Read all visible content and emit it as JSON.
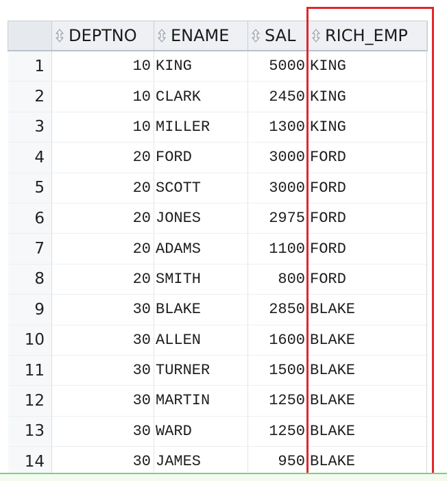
{
  "columns": [
    {
      "label": "DEPTNO",
      "icon": "sort-icon"
    },
    {
      "label": "ENAME",
      "icon": "sort-icon"
    },
    {
      "label": "SAL",
      "icon": "sort-icon"
    },
    {
      "label": "RICH_EMP",
      "icon": "sort-icon"
    }
  ],
  "rows": [
    {
      "n": "1",
      "deptno": "10",
      "ename": "KING",
      "sal": "5000",
      "rich_emp": "KING"
    },
    {
      "n": "2",
      "deptno": "10",
      "ename": "CLARK",
      "sal": "2450",
      "rich_emp": "KING"
    },
    {
      "n": "3",
      "deptno": "10",
      "ename": "MILLER",
      "sal": "1300",
      "rich_emp": "KING"
    },
    {
      "n": "4",
      "deptno": "20",
      "ename": "FORD",
      "sal": "3000",
      "rich_emp": "FORD"
    },
    {
      "n": "5",
      "deptno": "20",
      "ename": "SCOTT",
      "sal": "3000",
      "rich_emp": "FORD"
    },
    {
      "n": "6",
      "deptno": "20",
      "ename": "JONES",
      "sal": "2975",
      "rich_emp": "FORD"
    },
    {
      "n": "7",
      "deptno": "20",
      "ename": "ADAMS",
      "sal": "1100",
      "rich_emp": "FORD"
    },
    {
      "n": "8",
      "deptno": "20",
      "ename": "SMITH",
      "sal": "800",
      "rich_emp": "FORD"
    },
    {
      "n": "9",
      "deptno": "30",
      "ename": "BLAKE",
      "sal": "2850",
      "rich_emp": "BLAKE"
    },
    {
      "n": "10",
      "deptno": "30",
      "ename": "ALLEN",
      "sal": "1600",
      "rich_emp": "BLAKE"
    },
    {
      "n": "11",
      "deptno": "30",
      "ename": "TURNER",
      "sal": "1500",
      "rich_emp": "BLAKE"
    },
    {
      "n": "12",
      "deptno": "30",
      "ename": "MARTIN",
      "sal": "1250",
      "rich_emp": "BLAKE"
    },
    {
      "n": "13",
      "deptno": "30",
      "ename": "WARD",
      "sal": "1250",
      "rich_emp": "BLAKE"
    },
    {
      "n": "14",
      "deptno": "30",
      "ename": "JAMES",
      "sal": "950",
      "rich_emp": "BLAKE"
    }
  ],
  "colors": {
    "highlight_border": "#e0262a",
    "header_bg": "#eef0f3",
    "bottom_accent": "#7fd07a"
  }
}
